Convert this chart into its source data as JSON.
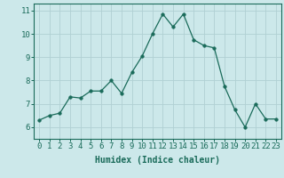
{
  "x": [
    0,
    1,
    2,
    3,
    4,
    5,
    6,
    7,
    8,
    9,
    10,
    11,
    12,
    13,
    14,
    15,
    16,
    17,
    18,
    19,
    20,
    21,
    22,
    23
  ],
  "y": [
    6.3,
    6.5,
    6.6,
    7.3,
    7.25,
    7.55,
    7.55,
    8.0,
    7.45,
    8.35,
    9.05,
    10.0,
    10.85,
    10.3,
    10.85,
    9.75,
    9.5,
    9.4,
    7.75,
    6.75,
    6.0,
    7.0,
    6.35,
    6.35
  ],
  "line_color": "#1a6b5a",
  "marker": "o",
  "marker_size": 2.5,
  "bg_color": "#cce8ea",
  "grid_color": "#b0d0d3",
  "axis_color": "#1a6b5a",
  "xlabel": "Humidex (Indice chaleur)",
  "xlim": [
    -0.5,
    23.5
  ],
  "ylim": [
    5.5,
    11.3
  ],
  "yticks": [
    6,
    7,
    8,
    9,
    10,
    11
  ],
  "xticks": [
    0,
    1,
    2,
    3,
    4,
    5,
    6,
    7,
    8,
    9,
    10,
    11,
    12,
    13,
    14,
    15,
    16,
    17,
    18,
    19,
    20,
    21,
    22,
    23
  ],
  "xlabel_fontsize": 7,
  "tick_fontsize": 6.5
}
